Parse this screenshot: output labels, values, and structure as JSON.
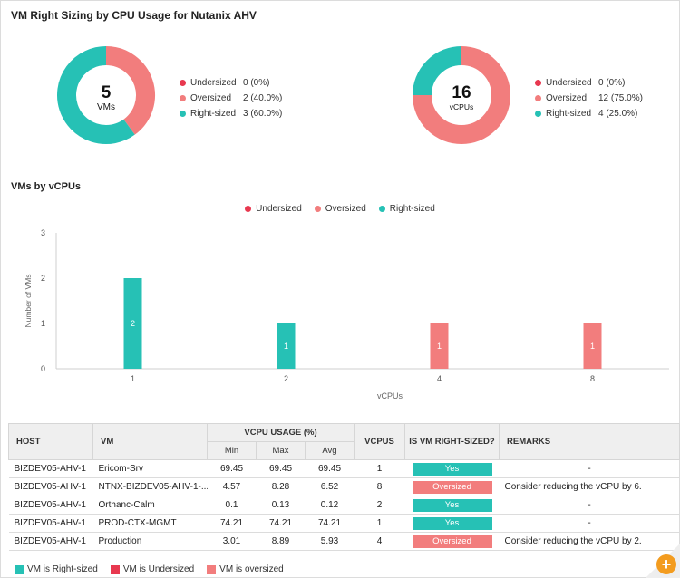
{
  "title": "VM Right Sizing by CPU Usage for Nutanix AHV",
  "colors": {
    "undersized": "#e8384f",
    "oversized": "#f27d7d",
    "rightsized": "#26c1b5"
  },
  "donut_vms": {
    "value": "5",
    "unit": "VMs",
    "legend": [
      {
        "label": "Undersized",
        "value": "0 (0%)"
      },
      {
        "label": "Oversized",
        "value": "2 (40.0%)"
      },
      {
        "label": "Right-sized",
        "value": "3 (60.0%)"
      }
    ]
  },
  "donut_vcpus": {
    "value": "16",
    "unit": "vCPUs",
    "legend": [
      {
        "label": "Undersized",
        "value": "0 (0%)"
      },
      {
        "label": "Oversized",
        "value": "12 (75.0%)"
      },
      {
        "label": "Right-sized",
        "value": "4 (25.0%)"
      }
    ]
  },
  "chart_section_title": "VMs by vCPUs",
  "chart_data": [
    {
      "type": "pie",
      "categories": [
        "Undersized",
        "Oversized",
        "Right-sized"
      ],
      "values": [
        0,
        2,
        3
      ],
      "center_label": "5",
      "center_sublabel": "VMs"
    },
    {
      "type": "pie",
      "categories": [
        "Undersized",
        "Oversized",
        "Right-sized"
      ],
      "values": [
        0,
        12,
        4
      ],
      "center_label": "16",
      "center_sublabel": "vCPUs"
    },
    {
      "type": "bar",
      "title": "VMs by vCPUs",
      "xlabel": "vCPUs",
      "ylabel": "Number of VMs",
      "ylim": [
        0,
        3
      ],
      "yticks": [
        "0",
        "1",
        "2",
        "3"
      ],
      "legend": [
        "Undersized",
        "Oversized",
        "Right-sized"
      ],
      "legend_position": "top-center",
      "grid": false,
      "categories": [
        "1",
        "2",
        "4",
        "8"
      ],
      "bars": [
        {
          "category": "1",
          "value": 2,
          "status": "rightsized",
          "label": "2"
        },
        {
          "category": "2",
          "value": 1,
          "status": "rightsized",
          "label": "1"
        },
        {
          "category": "4",
          "value": 1,
          "status": "oversized",
          "label": "1"
        },
        {
          "category": "8",
          "value": 1,
          "status": "oversized",
          "label": "1"
        }
      ]
    }
  ],
  "table": {
    "headers": {
      "host": "HOST",
      "vm": "VM",
      "vcpu_usage": "VCPU USAGE (%)",
      "min": "Min",
      "max": "Max",
      "avg": "Avg",
      "vcpus": "VCPUS",
      "rightsized": "IS VM RIGHT-SIZED?",
      "remarks": "REMARKS"
    },
    "rows": [
      {
        "host": "BIZDEV05-AHV-1",
        "vm": "Ericom-Srv",
        "min": "69.45",
        "max": "69.45",
        "avg": "69.45",
        "vcpus": "1",
        "status": "Yes",
        "status_type": "rightsized",
        "remarks": "-"
      },
      {
        "host": "BIZDEV05-AHV-1",
        "vm": "NTNX-BIZDEV05-AHV-1-...",
        "min": "4.57",
        "max": "8.28",
        "avg": "6.52",
        "vcpus": "8",
        "status": "Oversized",
        "status_type": "oversized",
        "remarks": "Consider reducing the vCPU by 6."
      },
      {
        "host": "BIZDEV05-AHV-1",
        "vm": "Orthanc-Calm",
        "min": "0.1",
        "max": "0.13",
        "avg": "0.12",
        "vcpus": "2",
        "status": "Yes",
        "status_type": "rightsized",
        "remarks": "-"
      },
      {
        "host": "BIZDEV05-AHV-1",
        "vm": "PROD-CTX-MGMT",
        "min": "74.21",
        "max": "74.21",
        "avg": "74.21",
        "vcpus": "1",
        "status": "Yes",
        "status_type": "rightsized",
        "remarks": "-"
      },
      {
        "host": "BIZDEV05-AHV-1",
        "vm": "Production",
        "min": "3.01",
        "max": "8.89",
        "avg": "5.93",
        "vcpus": "4",
        "status": "Oversized",
        "status_type": "oversized",
        "remarks": "Consider reducing the vCPU by 2."
      }
    ]
  },
  "footer_legend": [
    {
      "label": "VM is Right-sized",
      "type": "rightsized"
    },
    {
      "label": "VM is Undersized",
      "type": "undersized"
    },
    {
      "label": "VM is oversized",
      "type": "oversized"
    }
  ],
  "fab_icon": "plus-icon",
  "fab_symbol": "+"
}
